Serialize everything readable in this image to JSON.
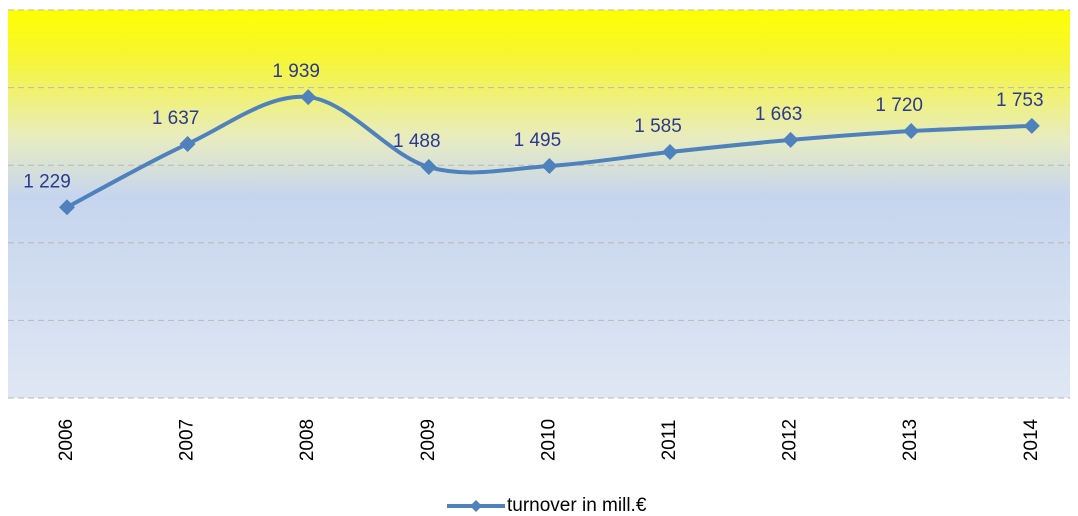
{
  "chart_data": {
    "type": "line",
    "categories": [
      "2006",
      "2007",
      "2008",
      "2009",
      "2010",
      "2011",
      "2012",
      "2013",
      "2014"
    ],
    "series": [
      {
        "name": "turnover in mill.€",
        "color": "#4f81bd",
        "values": [
          1229,
          1637,
          1939,
          1488,
          1495,
          1585,
          1663,
          1720,
          1753
        ],
        "value_labels": [
          "1 229",
          "1 637",
          "1 939",
          "1 488",
          "1 495",
          "1 585",
          "1 663",
          "1 720",
          "1 753"
        ]
      }
    ],
    "ylim": [
      0,
      2500
    ],
    "yticks": [
      0,
      500,
      1000,
      1500,
      2000,
      2500
    ],
    "grid": true,
    "smooth": true,
    "legend": "bottom"
  }
}
